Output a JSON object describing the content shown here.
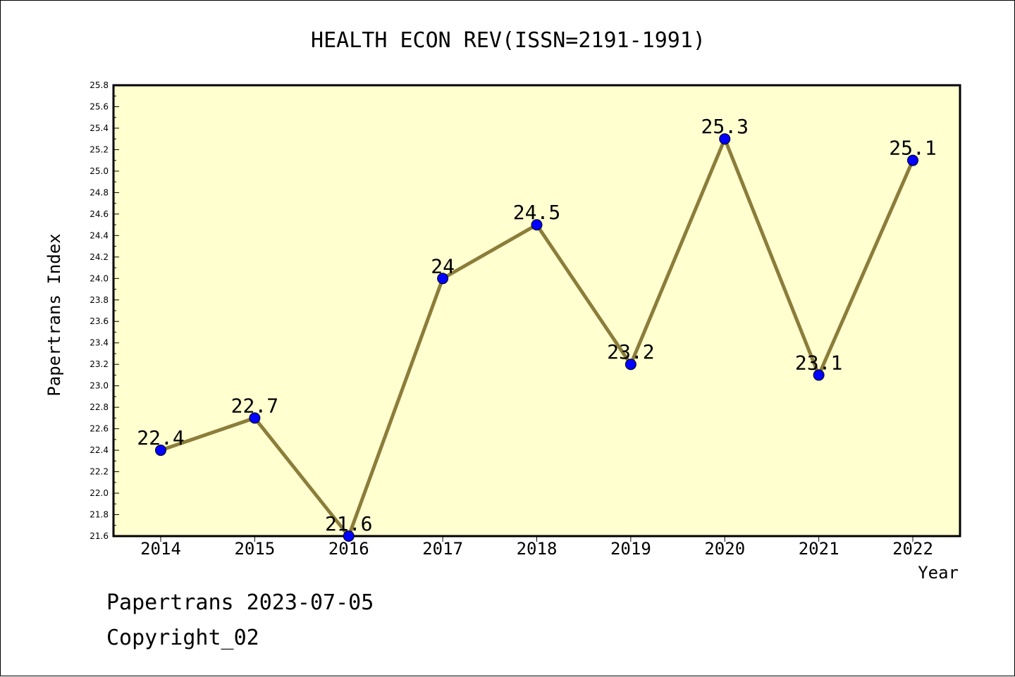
{
  "chart_data": {
    "type": "line",
    "title": "HEALTH ECON REV(ISSN=2191-1991)",
    "xlabel": "Year",
    "ylabel": "Papertrans Index",
    "categories": [
      "2014",
      "2015",
      "2016",
      "2017",
      "2018",
      "2019",
      "2020",
      "2021",
      "2022"
    ],
    "values": [
      22.4,
      22.7,
      21.6,
      24.0,
      24.5,
      23.2,
      25.3,
      23.1,
      25.1
    ],
    "data_labels": [
      "22.4",
      "22.7",
      "21.6",
      "24",
      "24.5",
      "23.2",
      "25.3",
      "23.1",
      "25.1"
    ],
    "ylim": [
      21.6,
      25.8
    ],
    "yticks": [
      "21.6",
      "21.8",
      "22.0",
      "22.2",
      "22.4",
      "22.6",
      "22.8",
      "23.0",
      "23.2",
      "23.4",
      "23.6",
      "23.8",
      "24.0",
      "24.2",
      "24.4",
      "24.6",
      "24.8",
      "25.0",
      "25.2",
      "25.4",
      "25.6",
      "25.8"
    ],
    "grid": false,
    "colors": {
      "plot_background": "#ffffd0",
      "line": "#8b7d3a",
      "marker": "#0000ff"
    }
  },
  "footer": {
    "line1": "Papertrans 2023-07-05",
    "line2": "Copyright_02"
  }
}
